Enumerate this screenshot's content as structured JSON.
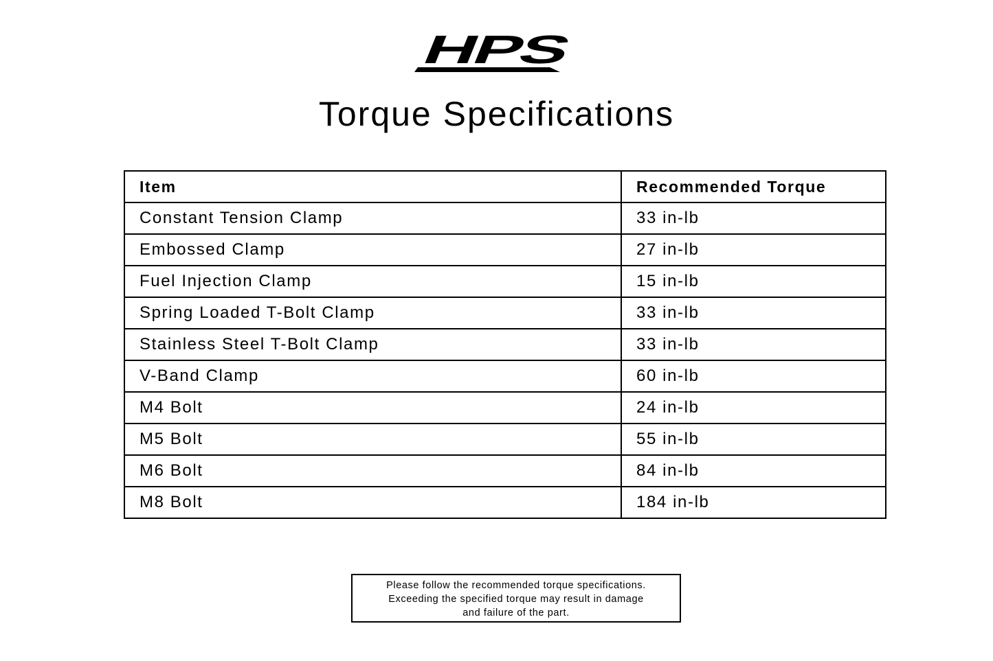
{
  "logo": {
    "text": "HPS"
  },
  "title": "Torque Specifications",
  "table": {
    "headers": [
      "Item",
      "Recommended Torque"
    ],
    "rows": [
      [
        "Constant Tension Clamp",
        "33 in-lb"
      ],
      [
        "Embossed Clamp",
        "27 in-lb"
      ],
      [
        "Fuel Injection Clamp",
        "15 in-lb"
      ],
      [
        "Spring Loaded T-Bolt Clamp",
        "33 in-lb"
      ],
      [
        "Stainless Steel T-Bolt Clamp",
        "33 in-lb"
      ],
      [
        "V-Band Clamp",
        "60 in-lb"
      ],
      [
        "M4 Bolt",
        "24 in-lb"
      ],
      [
        "M5 Bolt",
        "55 in-lb"
      ],
      [
        "M6 Bolt",
        "84 in-lb"
      ],
      [
        "M8 Bolt",
        "184 in-lb"
      ]
    ]
  },
  "note": {
    "lines": [
      "Please follow the recommended torque specifications.",
      "Exceeding the specified torque may result in damage",
      "and failure of the part."
    ]
  }
}
